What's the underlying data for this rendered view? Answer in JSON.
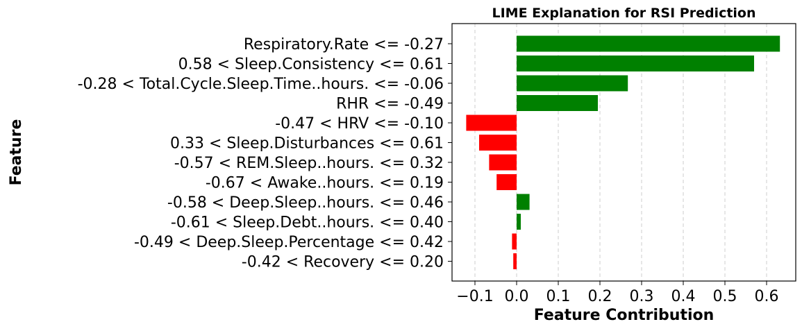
{
  "chart_data": {
    "type": "bar",
    "orientation": "horizontal",
    "title": "LIME Explanation for RSI Prediction",
    "xlabel": "Feature Contribution",
    "ylabel": "Feature",
    "xlim": [
      -0.155,
      0.67
    ],
    "xticks": [
      -0.1,
      0.0,
      0.1,
      0.2,
      0.3,
      0.4,
      0.5,
      0.6
    ],
    "xtick_labels": [
      "−0.1",
      "0.0",
      "0.1",
      "0.2",
      "0.3",
      "0.4",
      "0.5",
      "0.6"
    ],
    "grid": "x-axis dashed",
    "colors": {
      "positive": "#008000",
      "negative": "#ff0000"
    },
    "categories": [
      "Respiratory.Rate <= -0.27",
      "0.58 < Sleep.Consistency <= 0.61",
      "-0.28 < Total.Cycle.Sleep.Time..hours. <= -0.06",
      "RHR <= -0.49",
      "-0.47 < HRV <= -0.10",
      "0.33 < Sleep.Disturbances <= 0.61",
      "-0.57 < REM.Sleep..hours. <= 0.32",
      "-0.67 < Awake..hours. <= 0.19",
      "-0.58 < Deep.Sleep..hours. <= 0.46",
      "-0.61 < Sleep.Debt..hours. <= 0.40",
      "-0.49 < Deep.Sleep.Percentage <= 0.42",
      "-0.42 < Recovery <= 0.20"
    ],
    "values": [
      0.632,
      0.57,
      0.267,
      0.195,
      -0.121,
      -0.09,
      -0.066,
      -0.048,
      0.031,
      0.01,
      -0.011,
      -0.008
    ]
  }
}
